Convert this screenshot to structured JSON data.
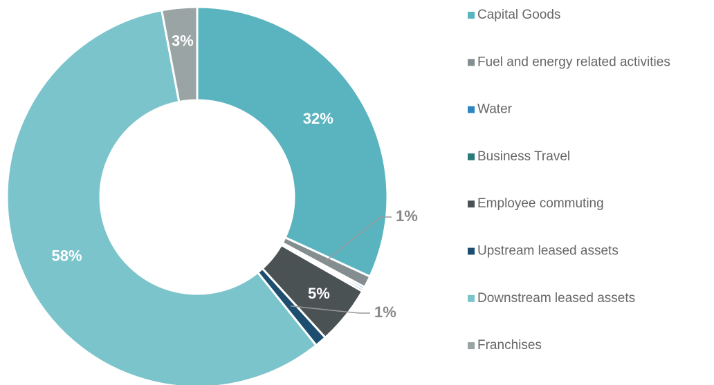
{
  "chart_data": {
    "type": "donut",
    "categories": [
      "Capital Goods",
      "Fuel and energy related activities",
      "Water",
      "Business Travel",
      "Employee commuting",
      "Upstream leased assets",
      "Downstream leased assets",
      "Franchises"
    ],
    "values": [
      32,
      1,
      0.2,
      0.2,
      5,
      1,
      58,
      3
    ],
    "value_labels": [
      "32%",
      "1%",
      null,
      null,
      "5%",
      "1%",
      "58%",
      "3%"
    ],
    "colors": [
      "#5ab4bf",
      "#848e90",
      "#2e86c1",
      "#2a7a7a",
      "#4a5253",
      "#1d4e6f",
      "#7cc4cc",
      "#9aa4a4"
    ],
    "legend": "right"
  }
}
